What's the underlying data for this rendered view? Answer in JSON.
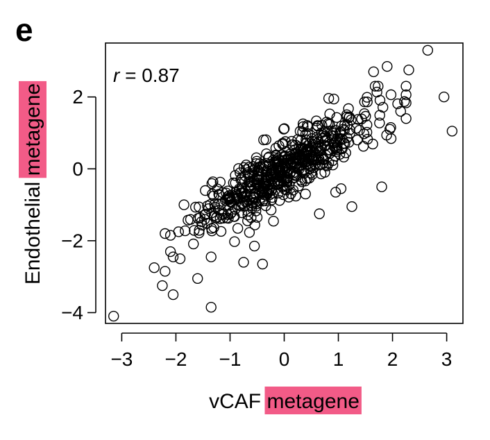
{
  "panel_label": "e",
  "colors": {
    "highlight": "#f25b87",
    "marker": "#000000",
    "background": "#ffffff"
  },
  "chart_data": {
    "type": "scatter",
    "title": "",
    "xlabel_parts": [
      "vCAF ",
      "metagene"
    ],
    "ylabel_parts": [
      "Endothelial ",
      "metagene"
    ],
    "highlighted_word": "metagene",
    "annotation": {
      "symbol": "r",
      "text": " = 0.87"
    },
    "xlim": [
      -3.3,
      3.3
    ],
    "ylim": [
      -4.3,
      3.5
    ],
    "xticks": [
      -3,
      -2,
      -1,
      0,
      1,
      2,
      3
    ],
    "yticks": [
      -4,
      -2,
      0,
      2
    ],
    "xtick_labels": [
      "−3",
      "−2",
      "−1",
      "0",
      "1",
      "2",
      "3"
    ],
    "ytick_labels": [
      "−4",
      "−2",
      "0",
      "2"
    ],
    "marker": "open-circle",
    "points_sampled": 560,
    "correlation": 0.87,
    "outliers": [
      [
        -3.15,
        -4.1
      ],
      [
        -1.35,
        -3.85
      ],
      [
        -2.05,
        -3.5
      ],
      [
        -2.25,
        -3.25
      ],
      [
        -2.4,
        -2.75
      ],
      [
        -2.2,
        -2.85
      ],
      [
        -1.6,
        -3.05
      ],
      [
        -0.75,
        -2.6
      ],
      [
        -0.4,
        -2.65
      ],
      [
        -0.55,
        -2.15
      ],
      [
        2.65,
        3.3
      ],
      [
        2.95,
        2.0
      ],
      [
        3.1,
        1.05
      ],
      [
        1.8,
        -0.5
      ],
      [
        1.25,
        -1.05
      ],
      [
        0.65,
        -1.25
      ],
      [
        1.9,
        2.85
      ],
      [
        2.3,
        2.75
      ],
      [
        1.65,
        2.7
      ],
      [
        -1.85,
        -1.0
      ],
      [
        -1.95,
        -1.75
      ],
      [
        -2.2,
        -1.8
      ],
      [
        -2.05,
        -2.45
      ],
      [
        -1.35,
        -2.45
      ],
      [
        -0.5,
        -1.35
      ],
      [
        1.05,
        -0.55
      ],
      [
        0.95,
        -0.65
      ],
      [
        2.15,
        1.6
      ],
      [
        1.95,
        1.1
      ],
      [
        2.25,
        1.4
      ]
    ]
  }
}
